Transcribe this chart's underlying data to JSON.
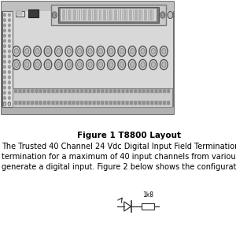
{
  "background_color": "#ffffff",
  "figure_caption": "Figure 1 T8800 Layout",
  "caption_fontsize": 7.5,
  "caption_bold": true,
  "body_text_lines": [
    "The Trusted 40 Channel 24 Vdc Digital Input Field Termination",
    "termination for a maximum of 40 input channels from various",
    "generate a digital input. Figure 2 below shows the configuratio"
  ],
  "body_fontsize": 7.0,
  "circuit_label": "1k8",
  "panel_bg": "#d8d8d8",
  "panel_border": "#555555",
  "panel_top_stripe": "#c0c0c0",
  "panel_bot_stripe": "#b0b0b0",
  "left_strip_bg": "#e0e0e0",
  "left_strip_border": "#666666",
  "dot_color": "#999999",
  "small_sq_bg": "#e8e8e8",
  "black_conn": "#3a3a3a",
  "conn_outer_bg": "#b0b0b0",
  "conn_inner_bg": "#808080",
  "conn_pin_bg": "#d8d8d8",
  "circle_outer_bg": "#d0d0d0",
  "circle_inner_bg": "#b8b8b8",
  "term_bg": "#c8c8c8",
  "term_conn_bg": "#aaaaaa",
  "term_screw_bg": "#909090"
}
